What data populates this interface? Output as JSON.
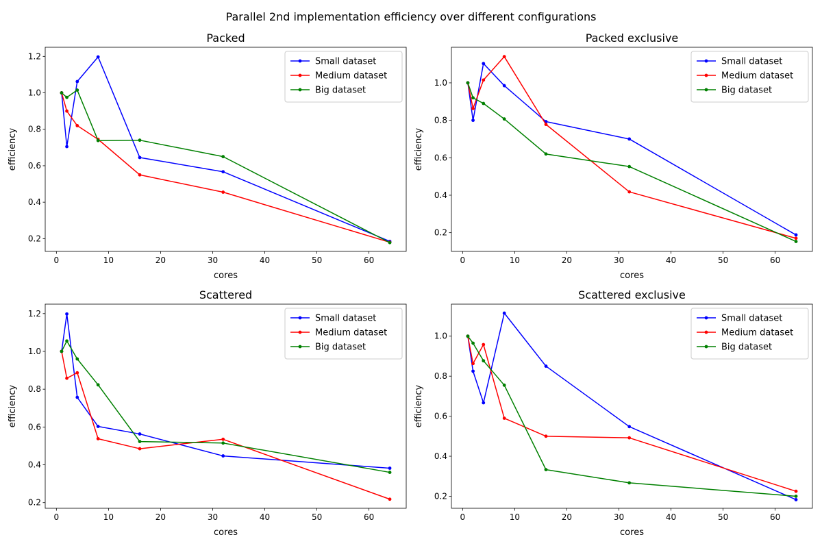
{
  "figure": {
    "suptitle": "Parallel 2nd implementation efficiency over different configurations"
  },
  "chart_data": [
    {
      "type": "line",
      "title": "Packed",
      "xlabel": "cores",
      "ylabel": "efficiency",
      "xlim": [
        -2.15,
        67.15
      ],
      "ylim": [
        0.13,
        1.25
      ],
      "xticks": [
        0,
        10,
        20,
        30,
        40,
        50,
        60
      ],
      "yticks": [
        0.2,
        0.4,
        0.6,
        0.8,
        1.0,
        1.2
      ],
      "legend": "top-right",
      "grid": false,
      "x": [
        1,
        2,
        4,
        8,
        16,
        32,
        64
      ],
      "series": [
        {
          "name": "Small dataset",
          "color": "#0000ff",
          "values": [
            1.0,
            0.705,
            1.062,
            1.197,
            0.645,
            0.567,
            0.185
          ]
        },
        {
          "name": "Medium dataset",
          "color": "#ff0000",
          "values": [
            1.0,
            0.9,
            0.82,
            0.745,
            0.55,
            0.455,
            0.18
          ]
        },
        {
          "name": "Big dataset",
          "color": "#008000",
          "values": [
            1.0,
            0.975,
            1.015,
            0.738,
            0.74,
            0.65,
            0.178
          ]
        }
      ]
    },
    {
      "type": "line",
      "title": "Packed exclusive",
      "xlabel": "cores",
      "ylabel": "efficiency",
      "xlim": [
        -2.15,
        67.15
      ],
      "ylim": [
        0.1,
        1.19
      ],
      "xticks": [
        0,
        10,
        20,
        30,
        40,
        50,
        60
      ],
      "yticks": [
        0.2,
        0.4,
        0.6,
        0.8,
        1.0
      ],
      "legend": "top-right",
      "grid": false,
      "x": [
        1,
        2,
        4,
        8,
        16,
        32,
        64
      ],
      "series": [
        {
          "name": "Small dataset",
          "color": "#0000ff",
          "values": [
            1.0,
            0.8,
            1.103,
            0.985,
            0.793,
            0.7,
            0.188
          ]
        },
        {
          "name": "Medium dataset",
          "color": "#ff0000",
          "values": [
            1.0,
            0.863,
            1.015,
            1.14,
            0.778,
            0.418,
            0.17
          ]
        },
        {
          "name": "Big dataset",
          "color": "#008000",
          "values": [
            1.0,
            0.92,
            0.89,
            0.807,
            0.62,
            0.553,
            0.153
          ]
        }
      ]
    },
    {
      "type": "line",
      "title": "Scattered",
      "xlabel": "cores",
      "ylabel": "efficiency",
      "xlim": [
        -2.15,
        67.15
      ],
      "ylim": [
        0.17,
        1.25
      ],
      "xticks": [
        0,
        10,
        20,
        30,
        40,
        50,
        60
      ],
      "yticks": [
        0.2,
        0.4,
        0.6,
        0.8,
        1.0,
        1.2
      ],
      "legend": "top-right",
      "grid": false,
      "x": [
        1,
        2,
        4,
        8,
        16,
        32,
        64
      ],
      "series": [
        {
          "name": "Small dataset",
          "color": "#0000ff",
          "values": [
            1.0,
            1.198,
            0.757,
            0.603,
            0.563,
            0.447,
            0.382
          ]
        },
        {
          "name": "Medium dataset",
          "color": "#ff0000",
          "values": [
            1.0,
            0.858,
            0.887,
            0.538,
            0.485,
            0.535,
            0.218
          ]
        },
        {
          "name": "Big dataset",
          "color": "#008000",
          "values": [
            1.0,
            1.055,
            0.96,
            0.823,
            0.523,
            0.515,
            0.36
          ]
        }
      ]
    },
    {
      "type": "line",
      "title": "Scattered exclusive",
      "xlabel": "cores",
      "ylabel": "efficiency",
      "xlim": [
        -2.15,
        67.15
      ],
      "ylim": [
        0.14,
        1.16
      ],
      "xticks": [
        0,
        10,
        20,
        30,
        40,
        50,
        60
      ],
      "yticks": [
        0.2,
        0.4,
        0.6,
        0.8,
        1.0
      ],
      "legend": "top-right",
      "grid": false,
      "x": [
        1,
        2,
        4,
        8,
        16,
        32,
        64
      ],
      "series": [
        {
          "name": "Small dataset",
          "color": "#0000ff",
          "values": [
            1.0,
            0.825,
            0.667,
            1.115,
            0.85,
            0.548,
            0.183
          ]
        },
        {
          "name": "Medium dataset",
          "color": "#ff0000",
          "values": [
            1.0,
            0.863,
            0.958,
            0.59,
            0.5,
            0.492,
            0.225
          ]
        },
        {
          "name": "Big dataset",
          "color": "#008000",
          "values": [
            1.0,
            0.965,
            0.877,
            0.755,
            0.333,
            0.267,
            0.2
          ]
        }
      ]
    }
  ]
}
